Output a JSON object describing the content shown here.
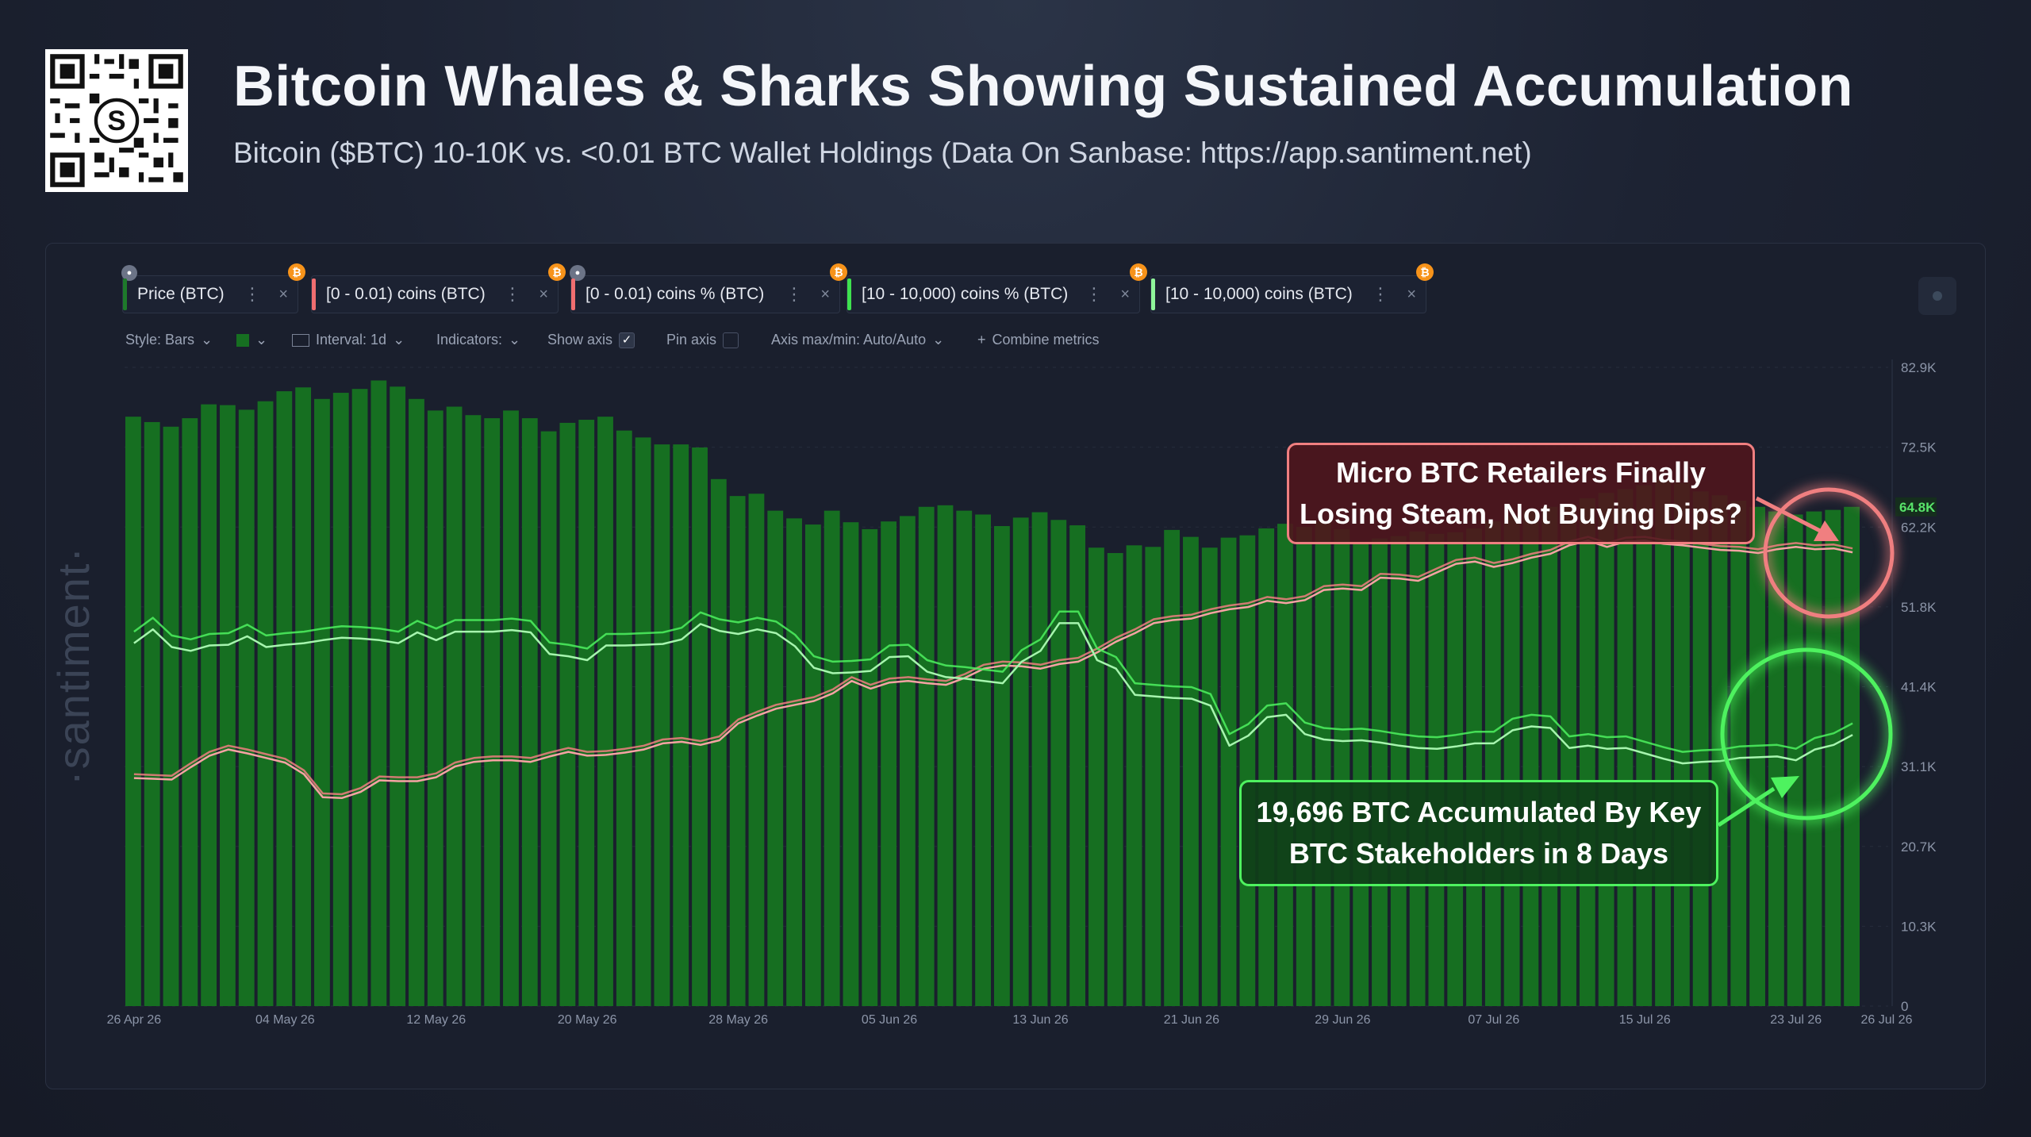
{
  "header": {
    "title": "Bitcoin Whales & Sharks Showing Sustained Accumulation",
    "subtitle": "Bitcoin ($BTC) 10-10K vs. <0.01 BTC Wallet Holdings (Data On Sanbase: https://app.santiment.net)"
  },
  "watermark": "·santiment·",
  "metrics": [
    {
      "label": "Price (BTC)",
      "color": "#1e7a2b",
      "lock": true
    },
    {
      "label": "[0 - 0.01) coins (BTC)",
      "color": "#f06e70",
      "lock": false
    },
    {
      "label": "[0 - 0.01) coins % (BTC)",
      "color": "#f06e70",
      "lock": true
    },
    {
      "label": "[10 - 10,000) coins % (BTC)",
      "color": "#3ee24f",
      "lock": false
    },
    {
      "label": "[10 - 10,000) coins (BTC)",
      "color": "#8ff59a",
      "lock": false
    }
  ],
  "toolbar": {
    "style": "Style: Bars",
    "interval": "Interval: 1d",
    "indicators": "Indicators:",
    "show_axis": "Show axis",
    "pin_axis": "Pin axis",
    "axis_maxmin": "Axis max/min: Auto/Auto",
    "combine": "Combine metrics"
  },
  "callouts": {
    "red": "Micro BTC Retailers Finally Losing Steam, Not Buying Dips?",
    "green": "19,696 BTC Accumulated By Key BTC Stakeholders in 8 Days"
  },
  "colors": {
    "bars": "#166f21",
    "retail": "#f07f80",
    "whales": "#4ef25f",
    "accent": "#f7931a"
  },
  "chart_data": {
    "type": "bar",
    "x_tick_labels": [
      "26 Apr 26",
      "04 May 26",
      "12 May 26",
      "20 May 26",
      "28 May 26",
      "05 Jun 26",
      "13 Jun 26",
      "21 Jun 26",
      "29 Jun 26",
      "07 Jul 26",
      "15 Jul 26",
      "23 Jul 26",
      "26 Jul 26"
    ],
    "y_ticks": [
      "0",
      "10.3K",
      "20.7K",
      "31.1K",
      "41.4K",
      "51.8K",
      "62.2K",
      "72.5K",
      "82.9K"
    ],
    "ylim": [
      0,
      82900
    ],
    "current_price_label": "64.8K",
    "price_bars": [
      76500,
      75800,
      75200,
      76300,
      78100,
      78000,
      77400,
      78500,
      79800,
      80300,
      78800,
      79600,
      80100,
      81200,
      80400,
      78800,
      77300,
      77800,
      76700,
      76300,
      77300,
      76300,
      74600,
      75700,
      76100,
      76500,
      74700,
      73800,
      72900,
      72900,
      72500,
      68400,
      66200,
      66500,
      64300,
      63300,
      62500,
      64300,
      62800,
      61900,
      62900,
      63600,
      64800,
      65000,
      64300,
      63800,
      62300,
      63400,
      64100,
      63100,
      62400,
      59500,
      58800,
      59800,
      59600,
      61800,
      60900,
      59500,
      60800,
      61100,
      62000,
      62600,
      62200,
      62900,
      61900,
      60100,
      60700,
      61000,
      61600,
      61300,
      61500,
      62000,
      62900,
      63600,
      64300,
      64800,
      65100,
      65900,
      66600,
      67100,
      67600,
      68300,
      67900,
      66800,
      66300,
      65600,
      64800,
      64200,
      63800,
      64200,
      64400,
      64800
    ],
    "series": [
      {
        "name": "[0 - 0.01) coins (BTC)",
        "color": "#f07f80",
        "values": [
          29600,
          29500,
          29400,
          31000,
          32500,
          33300,
          32800,
          32200,
          31600,
          30100,
          27100,
          27000,
          27800,
          29300,
          29200,
          29200,
          29700,
          31100,
          31700,
          31900,
          31900,
          31700,
          32400,
          33000,
          32500,
          32600,
          32900,
          33300,
          34100,
          34300,
          33900,
          34500,
          36700,
          37700,
          38600,
          39100,
          39600,
          40600,
          42200,
          41200,
          42000,
          42200,
          41900,
          41700,
          42600,
          43800,
          44200,
          44100,
          43800,
          44400,
          44700,
          45900,
          47300,
          48400,
          49700,
          50100,
          50300,
          51000,
          51500,
          51800,
          52600,
          52300,
          52700,
          54000,
          54200,
          54000,
          55600,
          55500,
          55200,
          56300,
          57400,
          57700,
          57000,
          57500,
          58200,
          58700,
          59800,
          60400,
          59600,
          60300,
          60400,
          60000,
          59800,
          59500,
          59200,
          59100,
          58800,
          59300,
          59600,
          59300,
          59400,
          58900
        ],
        "values_alt": [
          30100,
          30000,
          29900,
          31500,
          33000,
          33800,
          33300,
          32700,
          32100,
          30600,
          27600,
          27500,
          28300,
          29800,
          29700,
          29700,
          30200,
          31600,
          32200,
          32400,
          32400,
          32200,
          32900,
          33500,
          33000,
          33100,
          33400,
          33800,
          34600,
          34800,
          34400,
          35000,
          37200,
          38200,
          39100,
          39600,
          40100,
          41100,
          42700,
          41700,
          42500,
          42700,
          42400,
          42200,
          43100,
          44300,
          44700,
          44600,
          44300,
          44900,
          45200,
          46400,
          47800,
          48900,
          50200,
          50600,
          50800,
          51500,
          52000,
          52300,
          53100,
          52800,
          53200,
          54500,
          54700,
          54500,
          56100,
          56000,
          55700,
          56800,
          57900,
          58200,
          57500,
          58000,
          58700,
          59200,
          60300,
          60900,
          60100,
          60800,
          60900,
          60500,
          60300,
          60000,
          59700,
          59600,
          59300,
          59800,
          60100,
          59800,
          59900,
          59400
        ]
      },
      {
        "name": "[10 - 10,000) coins (BTC)",
        "color": "#4ef25f",
        "values": [
          47100,
          48900,
          46600,
          46100,
          46800,
          46900,
          48000,
          46600,
          46900,
          47100,
          47500,
          47800,
          47700,
          47500,
          47100,
          48500,
          47500,
          48600,
          48600,
          48600,
          48800,
          48500,
          45700,
          45400,
          44900,
          46800,
          46800,
          46900,
          47000,
          47600,
          49600,
          48700,
          48300,
          48900,
          48400,
          46700,
          43900,
          43200,
          43300,
          43500,
          45300,
          45400,
          43400,
          42700,
          42500,
          42200,
          41900,
          44700,
          46100,
          49700,
          49700,
          44900,
          43800,
          40400,
          40200,
          40000,
          39900,
          39000,
          33800,
          35100,
          37500,
          37800,
          35300,
          34600,
          34400,
          34500,
          34200,
          33800,
          33500,
          33400,
          33700,
          34100,
          34100,
          35800,
          36300,
          36100,
          33500,
          33800,
          33400,
          33500,
          32800,
          32100,
          31500,
          31700,
          31800,
          32200,
          32300,
          32400,
          31900,
          33300,
          33900,
          35200
        ],
        "values_alt": [
          48600,
          50400,
          48100,
          47600,
          48300,
          48400,
          49500,
          48100,
          48400,
          48600,
          49000,
          49300,
          49200,
          49000,
          48600,
          50000,
          49000,
          50100,
          50100,
          50100,
          50300,
          50000,
          47200,
          46900,
          46400,
          48300,
          48300,
          48400,
          48500,
          49100,
          51100,
          50200,
          49800,
          50400,
          49900,
          48200,
          45400,
          44700,
          44800,
          45000,
          46800,
          46900,
          44900,
          44200,
          44000,
          43700,
          43400,
          46200,
          47600,
          51200,
          51200,
          46400,
          45300,
          41900,
          41700,
          41500,
          41400,
          40500,
          35300,
          36600,
          39000,
          39300,
          36800,
          36100,
          35900,
          36000,
          35700,
          35300,
          35000,
          34900,
          35200,
          35600,
          35600,
          37300,
          37800,
          37600,
          35000,
          35300,
          34900,
          35000,
          34300,
          33600,
          33000,
          33200,
          33300,
          33700,
          33800,
          33900,
          33400,
          34800,
          35400,
          36700
        ]
      }
    ],
    "grid": true
  }
}
